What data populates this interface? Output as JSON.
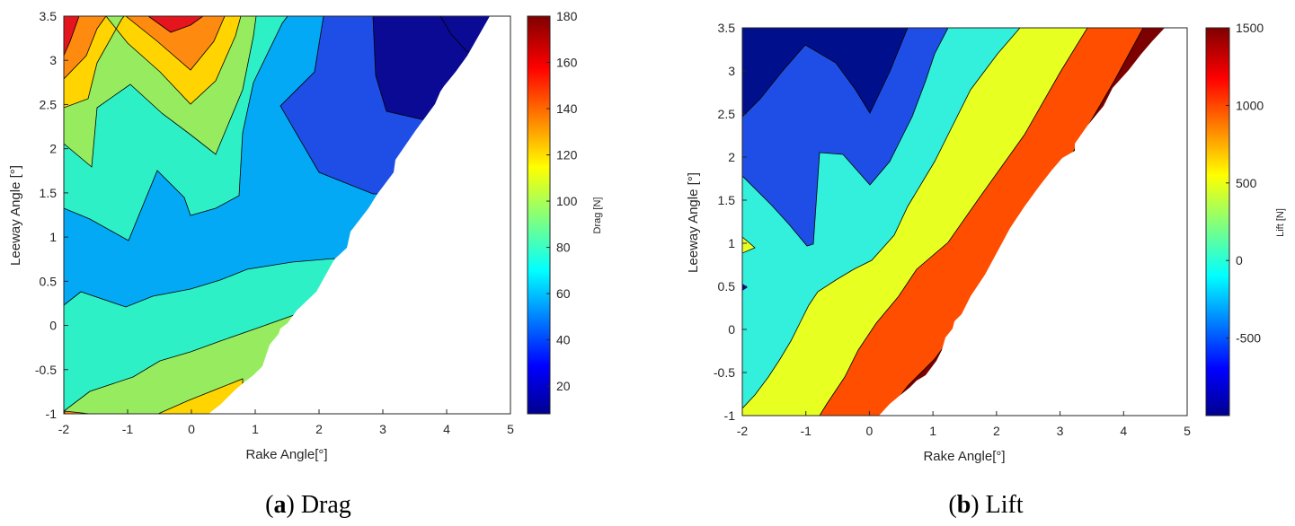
{
  "chart_data": [
    {
      "type": "heatmap",
      "subplot": "contour",
      "caption_letter": "(a)",
      "caption_text": "Drag",
      "xlabel": "Rake Angle[°]",
      "ylabel": "Leeway Angle [°]",
      "colorbar_label": "Drag [N]",
      "xlim": [
        -2,
        5
      ],
      "ylim": [
        -1,
        3.5
      ],
      "xticks": [
        "-2",
        "-1",
        "0",
        "1",
        "2",
        "3",
        "4",
        "5"
      ],
      "yticks": [
        "-1",
        "-0.5",
        "0",
        "0.5",
        "1",
        "1.5",
        "2",
        "2.5",
        "3",
        "3.5"
      ],
      "colorbar_range": [
        8,
        180
      ],
      "colorbar_ticks": [
        "20",
        "40",
        "60",
        "80",
        "100",
        "120",
        "140",
        "160",
        "180"
      ],
      "colormap": "jet",
      "colors": [
        "#0a0a95",
        "#1e4ee6",
        "#03a9f4",
        "#2ef0c6",
        "#96ec5e",
        "#ffd400",
        "#ff8a10",
        "#e6141c"
      ],
      "grid": [
        {
          "leeway": 3.5,
          "rake": [
            -2,
            -1.5,
            -1,
            -0.5,
            0,
            0.5,
            1,
            1.5,
            2,
            2.5,
            3,
            3.5,
            4,
            4.5
          ],
          "drag": [
            160,
            140,
            110,
            150,
            175,
            135,
            110,
            88,
            65,
            45,
            30,
            20,
            12,
            9
          ]
        },
        {
          "leeway": 3.0,
          "rake": [
            -2,
            -1.5,
            -1,
            -0.5,
            0,
            0.5,
            1,
            1.5,
            2,
            2.5,
            3,
            3.5,
            4
          ],
          "drag": [
            148,
            128,
            100,
            122,
            148,
            112,
            95,
            78,
            58,
            44,
            32,
            22,
            14
          ]
        },
        {
          "leeway": 2.5,
          "rake": [
            -2,
            -1.5,
            -1,
            -0.5,
            0,
            0.5,
            1,
            1.5,
            2,
            2.5,
            3,
            3.5
          ],
          "drag": [
            100,
            95,
            88,
            95,
            105,
            86,
            75,
            64,
            48,
            42,
            32,
            22
          ]
        },
        {
          "leeway": 2.0,
          "rake": [
            -2,
            -1.5,
            -1,
            -0.5,
            0,
            0.5,
            1,
            1.5,
            2,
            2.5,
            3
          ],
          "drag": [
            86,
            80,
            76,
            78,
            85,
            72,
            66,
            62,
            48,
            40,
            32
          ]
        },
        {
          "leeway": 1.5,
          "rake": [
            -2,
            -1.5,
            -1,
            -0.5,
            0,
            0.5,
            1,
            1.5,
            2,
            2.5
          ],
          "drag": [
            75,
            68,
            62,
            75,
            66,
            70,
            62,
            58,
            52,
            46
          ]
        },
        {
          "leeway": 1.0,
          "rake": [
            -2,
            -1.5,
            -1,
            -0.5,
            0,
            0.5,
            1,
            1.5,
            2,
            2.5
          ],
          "drag": [
            64,
            60,
            56,
            62,
            63,
            63,
            62,
            60,
            60,
            60
          ]
        },
        {
          "leeway": 0.5,
          "rake": [
            -2,
            -1.5,
            -1,
            -0.5,
            0,
            0.5,
            1,
            1.5,
            2
          ],
          "drag": [
            64,
            60,
            58,
            60,
            60,
            62,
            68,
            72,
            72
          ]
        },
        {
          "leeway": 0.0,
          "rake": [
            -2,
            -1.5,
            -1,
            -0.5,
            0,
            0.5,
            1,
            1.5
          ],
          "drag": [
            82,
            80,
            80,
            82,
            84,
            88,
            92,
            96
          ]
        },
        {
          "leeway": -0.5,
          "rake": [
            -2,
            -1.5,
            -1,
            -0.5,
            0,
            0.5,
            1
          ],
          "drag": [
            90,
            90,
            92,
            96,
            100,
            104,
            104
          ]
        },
        {
          "leeway": -1.0,
          "rake": [
            -2,
            -1.5,
            -1,
            -0.5,
            0,
            0.5
          ],
          "drag": [
            96,
            96,
            100,
            106,
            112,
            118
          ]
        }
      ]
    },
    {
      "type": "heatmap",
      "subplot": "contour",
      "caption_letter": "(b)",
      "caption_text": "Lift",
      "xlabel": "Rake Angle[°]",
      "ylabel": "Leeway Angle [°]",
      "colorbar_label": "Lift [N]",
      "xlim": [
        -2,
        5
      ],
      "ylim": [
        -1,
        3.5
      ],
      "xticks": [
        "-2",
        "-1",
        "0",
        "1",
        "2",
        "3",
        "4",
        "5"
      ],
      "yticks": [
        "-1",
        "-0.5",
        "0",
        "0.5",
        "1",
        "1.5",
        "2",
        "2.5",
        "3",
        "3.5"
      ],
      "colorbar_range": [
        -1000,
        1500
      ],
      "colorbar_ticks": [
        "-500",
        "0",
        "500",
        "1000",
        "1500"
      ],
      "colormap": "jet",
      "colors": [
        "#000f8c",
        "#1e4ee6",
        "#32f0dc",
        "#e8ff22",
        "#ff4e00",
        "#7c0000"
      ],
      "grid": [
        {
          "leeway": 3.5,
          "rake": [
            -2,
            -1,
            0,
            1,
            2,
            3,
            4,
            4.5
          ],
          "lift": [
            -900,
            -700,
            -600,
            -200,
            200,
            700,
            1100,
            1400
          ]
        },
        {
          "leeway": 2.5,
          "rake": [
            -2,
            -1,
            0,
            1,
            2,
            3,
            3.5
          ],
          "lift": [
            -650,
            -550,
            -700,
            -50,
            300,
            800,
            1200
          ]
        },
        {
          "leeway": 1.5,
          "rake": [
            -2,
            -1,
            0,
            1,
            2,
            2.5
          ],
          "lift": [
            -400,
            -400,
            -300,
            100,
            600,
            1100
          ]
        },
        {
          "leeway": 0.5,
          "rake": [
            -2,
            -1,
            0,
            1,
            2
          ],
          "lift": [
            -150,
            0,
            100,
            500,
            1100
          ]
        },
        {
          "leeway": -0.5,
          "rake": [
            -2,
            -1,
            0,
            1
          ],
          "lift": [
            100,
            300,
            600,
            1050
          ]
        },
        {
          "leeway": -1.0,
          "rake": [
            -2,
            -1,
            0,
            0.5
          ],
          "lift": [
            250,
            500,
            800,
            1100
          ]
        }
      ]
    }
  ]
}
